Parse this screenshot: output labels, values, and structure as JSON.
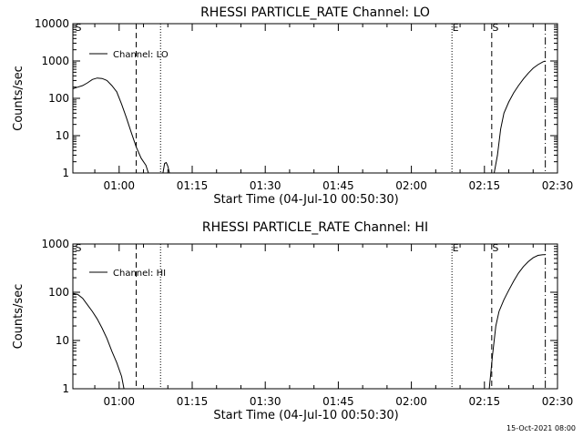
{
  "chart_data": [
    {
      "type": "line",
      "title": "RHESSI PARTICLE_RATE Channel: LO",
      "xlabel": "Start Time (04-Jul-10 00:50:30)",
      "ylabel": "Counts/sec",
      "yscale": "log",
      "xlim": [
        "00:50:30",
        "02:30:00"
      ],
      "ylim": [
        1,
        10000
      ],
      "xticks": [
        "01:00",
        "01:15",
        "01:30",
        "01:45",
        "02:00",
        "02:15",
        "02:30"
      ],
      "yticks": [
        "1",
        "10",
        "100",
        "1000",
        "10000"
      ],
      "legend": "upper-left",
      "series": [
        {
          "name": "Channel: LO",
          "segments": [
            [
              [
                "00:50:30",
                180
              ],
              [
                "00:51:30",
                200
              ],
              [
                "00:52:30",
                220
              ],
              [
                "00:53:30",
                260
              ],
              [
                "00:54:30",
                320
              ],
              [
                "00:55:30",
                350
              ],
              [
                "00:56:30",
                340
              ],
              [
                "00:57:30",
                300
              ],
              [
                "00:58:30",
                220
              ],
              [
                "00:59:30",
                150
              ],
              [
                "01:00:30",
                70
              ],
              [
                "01:01:30",
                30
              ],
              [
                "01:02:30",
                12
              ],
              [
                "01:03:30",
                5
              ],
              [
                "01:04:30",
                2.5
              ],
              [
                "01:05:30",
                1.6
              ],
              [
                "01:06:00",
                1
              ]
            ],
            [
              [
                "01:09:00",
                1
              ],
              [
                "01:09:20",
                1.8
              ],
              [
                "01:09:40",
                1.9
              ],
              [
                "01:10:00",
                1.5
              ],
              [
                "01:10:20",
                1
              ]
            ],
            [
              [
                "02:17:00",
                1
              ],
              [
                "02:17:40",
                3
              ],
              [
                "02:18:20",
                15
              ],
              [
                "02:19:00",
                40
              ],
              [
                "02:20:00",
                80
              ],
              [
                "02:21:00",
                140
              ],
              [
                "02:22:00",
                220
              ],
              [
                "02:23:00",
                330
              ],
              [
                "02:24:00",
                470
              ],
              [
                "02:25:00",
                640
              ],
              [
                "02:26:00",
                800
              ],
              [
                "02:27:00",
                950
              ],
              [
                "02:27:30",
                1000
              ]
            ]
          ]
        }
      ],
      "markers": [
        {
          "label": "S",
          "time": "00:50:30",
          "style": "none"
        },
        {
          "label": "",
          "time": "01:03:30",
          "style": "dashed"
        },
        {
          "label": "",
          "time": "01:08:30",
          "style": "dotted"
        },
        {
          "label": "E",
          "time": "02:08:20",
          "style": "dotted"
        },
        {
          "label": "S",
          "time": "02:16:30",
          "style": "dashed"
        },
        {
          "label": "",
          "time": "02:27:30",
          "style": "dashdot"
        }
      ]
    },
    {
      "type": "line",
      "title": "RHESSI PARTICLE_RATE Channel: HI",
      "xlabel": "Start Time (04-Jul-10 00:50:30)",
      "ylabel": "Counts/sec",
      "yscale": "log",
      "xlim": [
        "00:50:30",
        "02:30:00"
      ],
      "ylim": [
        1,
        1000
      ],
      "xticks": [
        "01:00",
        "01:15",
        "01:30",
        "01:45",
        "02:00",
        "02:15",
        "02:30"
      ],
      "yticks": [
        "1",
        "10",
        "100",
        "1000"
      ],
      "legend": "upper-left",
      "series": [
        {
          "name": "Channel: HI",
          "segments": [
            [
              [
                "00:50:30",
                95
              ],
              [
                "00:51:30",
                90
              ],
              [
                "00:52:30",
                75
              ],
              [
                "00:53:30",
                55
              ],
              [
                "00:54:30",
                40
              ],
              [
                "00:55:30",
                28
              ],
              [
                "00:56:30",
                18
              ],
              [
                "00:57:30",
                11
              ],
              [
                "00:58:30",
                6
              ],
              [
                "00:59:30",
                3.5
              ],
              [
                "01:00:30",
                1.8
              ],
              [
                "01:01:00",
                1
              ]
            ],
            [
              [
                "02:16:00",
                1
              ],
              [
                "02:16:40",
                5
              ],
              [
                "02:17:20",
                20
              ],
              [
                "02:18:00",
                40
              ],
              [
                "02:19:00",
                70
              ],
              [
                "02:20:00",
                110
              ],
              [
                "02:21:00",
                170
              ],
              [
                "02:22:00",
                250
              ],
              [
                "02:23:00",
                340
              ],
              [
                "02:24:00",
                430
              ],
              [
                "02:25:00",
                520
              ],
              [
                "02:26:00",
                580
              ],
              [
                "02:27:00",
                600
              ],
              [
                "02:27:30",
                600
              ]
            ]
          ]
        }
      ],
      "markers": [
        {
          "label": "S",
          "time": "00:50:30",
          "style": "none"
        },
        {
          "label": "",
          "time": "01:03:30",
          "style": "dashed"
        },
        {
          "label": "",
          "time": "01:08:30",
          "style": "dotted"
        },
        {
          "label": "E",
          "time": "02:08:20",
          "style": "dotted"
        },
        {
          "label": "S",
          "time": "02:16:30",
          "style": "dashed"
        },
        {
          "label": "",
          "time": "02:27:30",
          "style": "dashdot"
        }
      ]
    }
  ],
  "timestamp": "15-Oct-2021 08:00"
}
